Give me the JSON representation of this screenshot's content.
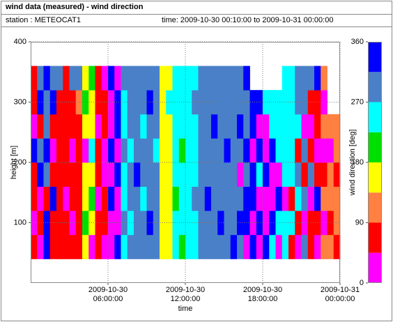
{
  "chart_data": {
    "type": "heatmap",
    "title": "wind data (measured) - wind direction",
    "station": "station : METEOCAT1",
    "period": "time: 2009-10-30 00:10:00 to 2009-10-31 00:00:00",
    "x_label": "time",
    "y_label": "height [m]",
    "xlim": [
      0,
      24
    ],
    "xticks": [
      {
        "value": 6,
        "label": "2009-10-30 06:00:00"
      },
      {
        "value": 12,
        "label": "2009-10-30 12:00:00"
      },
      {
        "value": 18,
        "label": "2009-10-30 18:00:00"
      },
      {
        "value": 24,
        "label": "2009-10-31 00:00:00"
      }
    ],
    "ylim": [
      0,
      400
    ],
    "yticks": [
      100,
      200,
      300,
      400
    ],
    "grid": true,
    "x": [
      0.25,
      0.75,
      1.25,
      1.75,
      2.25,
      2.75,
      3.25,
      3.75,
      4.25,
      4.75,
      5.25,
      5.75,
      6.25,
      6.75,
      7.25,
      7.75,
      8.25,
      8.75,
      9.25,
      9.75,
      10.25,
      10.75,
      11.25,
      11.75,
      12.25,
      12.75,
      13.25,
      13.75,
      14.25,
      14.75,
      15.25,
      15.75,
      16.25,
      16.75,
      17.25,
      17.75,
      18.25,
      18.75,
      19.25,
      19.75,
      20.25,
      20.75,
      21.25,
      21.75,
      22.25,
      22.75,
      23.25,
      23.75
    ],
    "y": [
      60,
      100,
      140,
      180,
      220,
      260,
      300,
      340
    ],
    "values": [
      [
        70,
        20,
        70,
        70,
        340,
        20,
        70,
        70
      ],
      [
        20,
        70,
        20,
        340,
        290,
        70,
        340,
        290
      ],
      [
        340,
        340,
        70,
        290,
        340,
        290,
        290,
        340
      ],
      [
        70,
        70,
        340,
        70,
        20,
        70,
        340,
        290
      ],
      [
        70,
        70,
        70,
        70,
        70,
        70,
        70,
        290
      ],
      [
        70,
        70,
        20,
        70,
        70,
        70,
        70,
        70
      ],
      [
        70,
        20,
        70,
        70,
        20,
        70,
        70,
        290
      ],
      [
        70,
        70,
        70,
        70,
        70,
        70,
        110,
        290
      ],
      [
        160,
        200,
        160,
        160,
        20,
        160,
        200,
        160
      ],
      [
        20,
        160,
        200,
        160,
        250,
        160,
        160,
        200
      ],
      [
        70,
        70,
        20,
        70,
        70,
        20,
        70,
        70
      ],
      [
        20,
        70,
        70,
        20,
        20,
        70,
        70,
        20
      ],
      [
        20,
        20,
        340,
        20,
        340,
        20,
        20,
        340
      ],
      [
        340,
        20,
        20,
        340,
        20,
        340,
        340,
        20
      ],
      [
        250,
        290,
        250,
        250,
        290,
        250,
        250,
        290
      ],
      [
        290,
        250,
        290,
        290,
        250,
        290,
        290,
        290
      ],
      [
        290,
        290,
        290,
        340,
        290,
        290,
        290,
        290
      ],
      [
        290,
        290,
        250,
        290,
        290,
        250,
        290,
        290
      ],
      [
        290,
        340,
        290,
        290,
        290,
        290,
        340,
        290
      ],
      [
        290,
        290,
        290,
        290,
        250,
        290,
        290,
        290
      ],
      [
        160,
        160,
        160,
        160,
        160,
        160,
        160,
        160
      ],
      [
        160,
        160,
        160,
        160,
        160,
        160,
        250,
        160
      ],
      [
        250,
        250,
        200,
        250,
        250,
        250,
        250,
        250
      ],
      [
        200,
        250,
        250,
        250,
        200,
        250,
        250,
        250
      ],
      [
        250,
        250,
        250,
        250,
        250,
        250,
        250,
        250
      ],
      [
        250,
        250,
        290,
        250,
        250,
        250,
        290,
        250
      ],
      [
        290,
        290,
        290,
        290,
        290,
        290,
        290,
        290
      ],
      [
        290,
        290,
        340,
        290,
        290,
        290,
        290,
        290
      ],
      [
        290,
        290,
        290,
        290,
        290,
        340,
        290,
        290
      ],
      [
        290,
        340,
        290,
        290,
        290,
        290,
        290,
        290
      ],
      [
        290,
        290,
        290,
        290,
        340,
        290,
        290,
        290
      ],
      [
        340,
        290,
        290,
        290,
        290,
        290,
        290,
        290
      ],
      [
        290,
        340,
        290,
        20,
        290,
        340,
        290,
        290
      ],
      [
        20,
        340,
        340,
        290,
        340,
        290,
        290,
        340
      ],
      [
        340,
        20,
        340,
        340,
        20,
        340,
        340,
        null
      ],
      [
        20,
        340,
        20,
        250,
        340,
        20,
        340,
        null
      ],
      [
        340,
        20,
        20,
        340,
        20,
        20,
        250,
        null
      ],
      [
        250,
        340,
        20,
        20,
        340,
        250,
        250,
        null
      ],
      [
        20,
        250,
        340,
        20,
        250,
        250,
        250,
        null
      ],
      [
        250,
        250,
        20,
        250,
        250,
        250,
        250,
        250
      ],
      [
        70,
        250,
        70,
        250,
        250,
        250,
        250,
        250
      ],
      [
        20,
        70,
        250,
        290,
        70,
        250,
        290,
        290
      ],
      [
        290,
        20,
        290,
        70,
        290,
        20,
        290,
        290
      ],
      [
        70,
        70,
        20,
        290,
        70,
        20,
        70,
        290
      ],
      [
        20,
        70,
        340,
        70,
        20,
        70,
        70,
        340
      ],
      [
        110,
        20,
        110,
        70,
        20,
        110,
        20,
        110
      ],
      [
        110,
        70,
        110,
        110,
        20,
        110,
        null,
        null
      ],
      [
        70,
        110,
        110,
        70,
        110,
        110,
        null,
        null
      ]
    ],
    "colorbar": {
      "label": "wind direction [deg]",
      "lim": [
        0,
        360
      ],
      "ticks": [
        0,
        90,
        180,
        270,
        360
      ],
      "bins": [
        0,
        45,
        90,
        135,
        180,
        225,
        270,
        315,
        360
      ],
      "colors": [
        "#ff00ff",
        "#ff0000",
        "#ff8040",
        "#ffff00",
        "#00e000",
        "#00ffff",
        "#4a80c8",
        "#0000ff"
      ]
    }
  }
}
